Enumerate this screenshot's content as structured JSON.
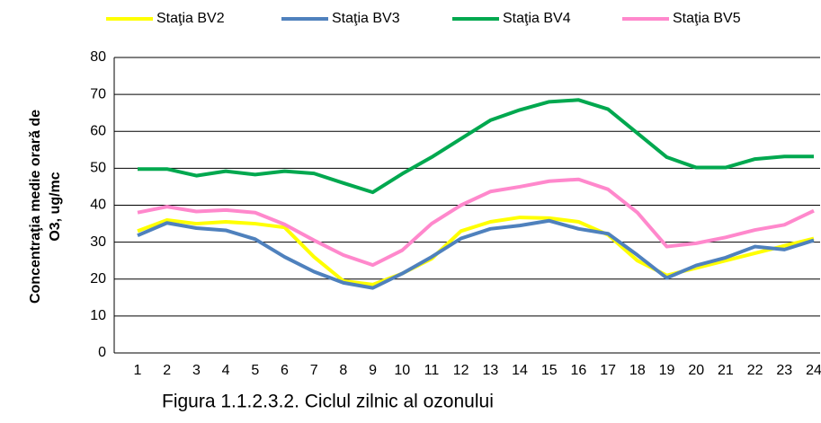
{
  "chart_data": {
    "type": "line",
    "title": "Figura 1.1.2.3.2. Ciclul zilnic al ozonului",
    "ylabel": [
      "Concentraţia medie orarǎ de",
      "O3, ug/mc"
    ],
    "categories": [
      "1",
      "2",
      "3",
      "4",
      "5",
      "6",
      "7",
      "8",
      "9",
      "10",
      "11",
      "12",
      "13",
      "14",
      "15",
      "16",
      "17",
      "18",
      "19",
      "20",
      "21",
      "22",
      "23",
      "24"
    ],
    "series": [
      {
        "name": "Staţia BV2",
        "color": "#ffff00",
        "values": [
          33,
          36,
          35,
          35.5,
          35,
          34,
          26,
          19.5,
          18.5,
          21.5,
          25.5,
          33,
          35.5,
          36.7,
          36.5,
          35.5,
          32,
          25,
          21,
          23,
          25,
          27,
          29,
          31
        ]
      },
      {
        "name": "Staţia BV3",
        "color": "#4f81bd",
        "values": [
          31.8,
          35.2,
          33.8,
          33.2,
          30.8,
          26,
          22,
          19,
          17.6,
          21.5,
          26,
          31,
          33.6,
          34.5,
          35.8,
          33.6,
          32.3,
          26.5,
          20.3,
          23.7,
          25.8,
          28.8,
          28,
          30.5
        ]
      },
      {
        "name": "Staţia BV4",
        "color": "#00a84f",
        "values": [
          49.8,
          49.8,
          48,
          49.2,
          48.3,
          49.2,
          48.6,
          46,
          43.5,
          48.5,
          53,
          58,
          63,
          65.8,
          68,
          68.5,
          66,
          59.5,
          53,
          50.2,
          50.2,
          52.5,
          53.2,
          53.2
        ]
      },
      {
        "name": "Staţia BV5",
        "color": "#ff88cc",
        "values": [
          38,
          39.6,
          38.3,
          38.7,
          38,
          34.8,
          30.5,
          26.5,
          23.8,
          27.8,
          35,
          40,
          43.7,
          45,
          46.5,
          47,
          44.3,
          38,
          28.8,
          29.7,
          31.3,
          33.3,
          34.7,
          38.5
        ]
      }
    ],
    "ylim": [
      0,
      80
    ],
    "yticks": [
      0,
      10,
      20,
      30,
      40,
      50,
      60,
      70,
      80
    ],
    "grid": true,
    "legend": "top"
  }
}
